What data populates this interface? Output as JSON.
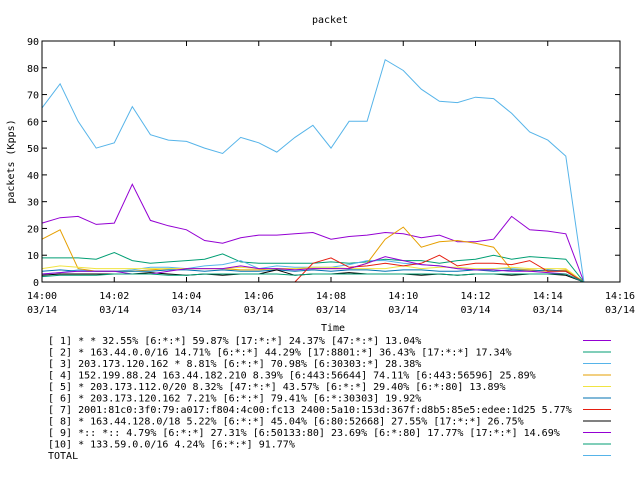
{
  "chart_data": {
    "type": "line",
    "title": "packet",
    "xlabel": "Time",
    "ylabel": "packets (Kpps)",
    "ylim": [
      0,
      90
    ],
    "xlim": [
      "14:00",
      "14:16"
    ],
    "x_ticks": [
      {
        "time": "14:00",
        "date": "03/14"
      },
      {
        "time": "14:02",
        "date": "03/14"
      },
      {
        "time": "14:04",
        "date": "03/14"
      },
      {
        "time": "14:06",
        "date": "03/14"
      },
      {
        "time": "14:08",
        "date": "03/14"
      },
      {
        "time": "14:10",
        "date": "03/14"
      },
      {
        "time": "14:12",
        "date": "03/14"
      },
      {
        "time": "14:14",
        "date": "03/14"
      },
      {
        "time": "14:16",
        "date": "03/14"
      }
    ],
    "y_ticks": [
      0,
      10,
      20,
      30,
      40,
      50,
      60,
      70,
      80,
      90
    ],
    "grid": false,
    "legend_position": "bottom",
    "x": [
      "14:00",
      "14:00:30",
      "14:01",
      "14:01:30",
      "14:02",
      "14:02:30",
      "14:03",
      "14:03:30",
      "14:04",
      "14:04:30",
      "14:05",
      "14:05:30",
      "14:06",
      "14:06:30",
      "14:07",
      "14:07:30",
      "14:08",
      "14:08:30",
      "14:09",
      "14:09:30",
      "14:10",
      "14:10:30",
      "14:11",
      "14:11:30",
      "14:12",
      "14:12:30",
      "14:13",
      "14:13:30",
      "14:14",
      "14:14:30",
      "14:15"
    ],
    "series": [
      {
        "name": "[ 1] * * 32.55%  [6:*:*] 59.87% [17:*:*] 24.37% [47:*:*] 13.04%",
        "color": "#9400d3",
        "values": [
          22,
          24,
          24.5,
          21.5,
          22,
          36.5,
          23,
          21,
          19.5,
          15.5,
          14.5,
          16.5,
          17.5,
          17.5,
          18,
          18.5,
          16,
          17,
          17.5,
          18.5,
          18,
          16.5,
          17.5,
          15,
          15,
          16,
          24.5,
          19.5,
          19,
          18,
          0
        ]
      },
      {
        "name": "[ 2] * 163.44.0.0/16 14.71%  [6:*:*] 44.29% [17:8801:*] 36.43% [17:*:*] 17.34%",
        "color": "#009e73",
        "values": [
          9,
          9,
          9,
          8.5,
          11,
          8,
          7,
          7.5,
          8,
          8.5,
          10.5,
          7.5,
          7,
          7,
          7,
          7,
          7.5,
          7,
          7.5,
          8.5,
          8,
          8,
          7,
          8,
          8.5,
          10,
          8.5,
          9.5,
          9,
          8.5,
          0
        ]
      },
      {
        "name": "[ 3] 203.173.120.162 * 8.81%  [6:*:*] 70.98% [6:30303:*] 28.38%",
        "color": "#56b4e9",
        "values": [
          3,
          3.5,
          4.5,
          4,
          4,
          4.5,
          5.5,
          5.5,
          5,
          6,
          6.5,
          8,
          5,
          6,
          5.5,
          5.5,
          5.5,
          6.5,
          8,
          8,
          7,
          6.5,
          6,
          5,
          4.5,
          5,
          5,
          4.5,
          4,
          4,
          0
        ]
      },
      {
        "name": "[ 4] 152.199.88.24 163.44.182.210 8.39%  [6:443:56644] 74.11% [6:443:56596] 25.89%",
        "color": "#e69f00",
        "values": [
          16,
          19.5,
          5,
          4,
          4,
          4,
          4.5,
          5,
          5,
          5,
          5,
          4.5,
          4.5,
          5,
          5,
          5,
          5,
          5,
          7,
          16,
          20.5,
          13,
          15,
          15.5,
          14.5,
          13,
          4.5,
          4.5,
          4,
          4.5,
          0
        ]
      },
      {
        "name": "[ 5] * 203.173.112.0/20 8.32%  [47:*:*] 43.57% [6:*:*] 29.40% [6:*:80] 13.89%",
        "color": "#f0e442",
        "values": [
          5,
          6,
          5.5,
          5,
          5,
          5,
          5,
          5,
          5,
          5,
          5,
          5.5,
          5,
          4.5,
          5,
          5.5,
          5.5,
          5,
          5,
          5,
          6,
          5,
          5.5,
          5.5,
          5,
          5,
          5.5,
          5,
          5,
          5,
          0
        ]
      },
      {
        "name": "[ 6] * 203.173.120.162 7.21%  [6:*:*] 79.41% [6:*:30303] 19.92%",
        "color": "#0072b2",
        "values": [
          4,
          4.5,
          4,
          4,
          4,
          4,
          4,
          4.5,
          4.5,
          4,
          4.5,
          4,
          4,
          4.5,
          4,
          4.5,
          4,
          4.5,
          4.5,
          4,
          4.5,
          4.5,
          4,
          4,
          4.5,
          4,
          4.5,
          4,
          4.5,
          4,
          0
        ]
      },
      {
        "name": "[ 7] 2001:81c0:3f0:79:a017:f804:4c00:fc13 2400:5a10:153d:367f:d8b5:85e5:edee:1d25 5.77%",
        "color": "#e51e10",
        "values": [
          0,
          0,
          0,
          0,
          0,
          0,
          0,
          0,
          0,
          0,
          0,
          0,
          0,
          0,
          0,
          7,
          9,
          5.5,
          6,
          7,
          6,
          7,
          10,
          6,
          7,
          7,
          6.5,
          8,
          4,
          4,
          0
        ]
      },
      {
        "name": "[ 8] * 163.44.128.0/18 5.22%  [6:*:*] 45.04% [6:80:52668] 27.55% [17:*:*] 26.75%",
        "color": "#000000",
        "values": [
          2.5,
          3,
          3,
          3,
          3,
          3,
          3.5,
          3,
          2.5,
          3,
          2.5,
          3,
          3,
          4.5,
          2.5,
          3,
          3,
          3.5,
          3,
          3,
          3,
          2.5,
          3,
          2.5,
          3,
          3,
          2.5,
          3,
          3,
          2.5,
          0
        ]
      },
      {
        "name": "[ 9] *:: *:: 4.79%  [6:*:*] 27.31% [6:50133:80] 23.69% [6:*:80] 17.77% [17:*:*] 14.69%",
        "color": "#9400d3",
        "values": [
          3,
          3.5,
          4,
          4,
          4,
          3,
          3,
          4,
          5,
          5,
          5,
          6,
          5,
          5,
          4.5,
          5,
          5,
          5,
          7,
          9.5,
          8,
          6.5,
          6,
          5,
          4.5,
          4.5,
          4,
          4,
          3.5,
          3,
          0
        ]
      },
      {
        "name": "[10] * 133.59.0.0/16 4.24%  [6:*:*] 91.77%",
        "color": "#009e73",
        "values": [
          2,
          2.5,
          2.5,
          2.5,
          3,
          3,
          3,
          2.5,
          2.5,
          3,
          3,
          3,
          3,
          3,
          2.5,
          3,
          3,
          3,
          3,
          3,
          3,
          3,
          3,
          2.5,
          3,
          3,
          3,
          3,
          3,
          3,
          0
        ]
      },
      {
        "name": "TOTAL",
        "color": "#56b4e9",
        "values": [
          65,
          74,
          60,
          50,
          52,
          65.5,
          55,
          53,
          52.5,
          50,
          48,
          54,
          52,
          48.5,
          54,
          58.5,
          50,
          60,
          60,
          83,
          79,
          72,
          67.5,
          67,
          69,
          68.5,
          63,
          56,
          53,
          47,
          0
        ]
      }
    ]
  }
}
